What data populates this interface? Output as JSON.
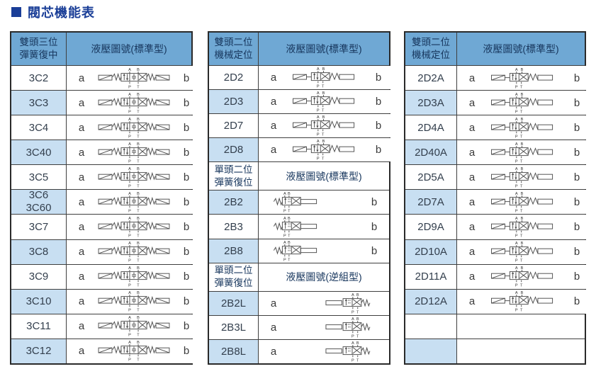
{
  "title": {
    "text": "閥芯機能表"
  },
  "colors": {
    "title_blue": "#1a3e97",
    "header_bg": "#6fa8d4",
    "alt_row_bg": "#c8dff2",
    "header_text": "#17365d",
    "border": "#2a2a2a",
    "diagram_stroke": "#4d4d4d"
  },
  "valve_ports": {
    "top_left": "A",
    "top_right": "B",
    "bottom_left": "P",
    "bottom_right": "T"
  },
  "tables": [
    {
      "key": "double-head-three-position",
      "sections": [
        {
          "kind": "main",
          "col1": "雙頭三位\n彈簧復中",
          "col2": "液壓圖號(標準型)",
          "rows": [
            {
              "code": "3C2",
              "a": "a",
              "b": "b",
              "diagram": "v3",
              "alt": false
            },
            {
              "code": "3C3",
              "a": "a",
              "b": "b",
              "diagram": "v3",
              "alt": true
            },
            {
              "code": "3C4",
              "a": "a",
              "b": "b",
              "diagram": "v3",
              "alt": false
            },
            {
              "code": "3C40",
              "a": "a",
              "b": "b",
              "diagram": "v3",
              "alt": true
            },
            {
              "code": "3C5",
              "a": "a",
              "b": "b",
              "diagram": "v3",
              "alt": false
            },
            {
              "code": "3C6\n3C60",
              "a": "a",
              "b": "b",
              "diagram": "v3",
              "alt": true
            },
            {
              "code": "3C7",
              "a": "a",
              "b": "b",
              "diagram": "v3",
              "alt": false
            },
            {
              "code": "3C8",
              "a": "a",
              "b": "b",
              "diagram": "v3",
              "alt": true
            },
            {
              "code": "3C9",
              "a": "a",
              "b": "b",
              "diagram": "v3",
              "alt": false
            },
            {
              "code": "3C10",
              "a": "a",
              "b": "b",
              "diagram": "v3",
              "alt": true
            },
            {
              "code": "3C11",
              "a": "a",
              "b": "b",
              "diagram": "v3",
              "alt": false
            },
            {
              "code": "3C12",
              "a": "a",
              "b": "b",
              "diagram": "v3",
              "alt": true
            }
          ]
        }
      ]
    },
    {
      "key": "double-single-head-two-position",
      "sections": [
        {
          "kind": "main",
          "col1": "雙頭二位\n機械定位",
          "col2": "液壓圖號(標準型)",
          "rows": [
            {
              "code": "2D2",
              "a": "a",
              "b": "b",
              "diagram": "v2d",
              "alt": false
            },
            {
              "code": "2D3",
              "a": "a",
              "b": "b",
              "diagram": "v2d",
              "alt": true
            },
            {
              "code": "2D7",
              "a": "a",
              "b": "b",
              "diagram": "v2d",
              "alt": false
            },
            {
              "code": "2D8",
              "a": "a",
              "b": "b",
              "diagram": "v2d",
              "alt": true
            }
          ]
        },
        {
          "kind": "sub",
          "col1": "單頭二位\n彈簧復位",
          "col2": "液壓圖號(標準型)",
          "rows": [
            {
              "code": "2B2",
              "a": "",
              "b": "b",
              "diagram": "v2b",
              "alt": true
            },
            {
              "code": "2B3",
              "a": "",
              "b": "b",
              "diagram": "v2b",
              "alt": false
            },
            {
              "code": "2B8",
              "a": "",
              "b": "b",
              "diagram": "v2b",
              "alt": true
            }
          ]
        },
        {
          "kind": "sub",
          "col1": "單頭二位\n彈簧復位",
          "col2": "液壓圖號(逆組型)",
          "rows": [
            {
              "code": "2B2L",
              "a": "a",
              "b": "",
              "diagram": "v2bl",
              "alt": true
            },
            {
              "code": "2B3L",
              "a": "a",
              "b": "",
              "diagram": "v2bl",
              "alt": false
            },
            {
              "code": "2B8L",
              "a": "a",
              "b": "",
              "diagram": "v2bl",
              "alt": true
            }
          ]
        }
      ]
    },
    {
      "key": "double-head-two-position-A",
      "sections": [
        {
          "kind": "main",
          "col1": "雙頭二位\n機械定位",
          "col2": "液壓圖號(標準型)",
          "rows": [
            {
              "code": "2D2A",
              "a": "a",
              "b": "b",
              "diagram": "v2d",
              "alt": false
            },
            {
              "code": "2D3A",
              "a": "a",
              "b": "b",
              "diagram": "v2d",
              "alt": true
            },
            {
              "code": "2D4A",
              "a": "a",
              "b": "b",
              "diagram": "v2d",
              "alt": false
            },
            {
              "code": "2D40A",
              "a": "a",
              "b": "b",
              "diagram": "v2d",
              "alt": true
            },
            {
              "code": "2D5A",
              "a": "a",
              "b": "b",
              "diagram": "v2d",
              "alt": false
            },
            {
              "code": "2D7A",
              "a": "a",
              "b": "b",
              "diagram": "v2d",
              "alt": true
            },
            {
              "code": "2D9A",
              "a": "a",
              "b": "b",
              "diagram": "v2d",
              "alt": false
            },
            {
              "code": "2D10A",
              "a": "a",
              "b": "b",
              "diagram": "v2d",
              "alt": true
            },
            {
              "code": "2D11A",
              "a": "a",
              "b": "b",
              "diagram": "v2d",
              "alt": false
            },
            {
              "code": "2D12A",
              "a": "a",
              "b": "b",
              "diagram": "v2d",
              "alt": true
            },
            {
              "code": "",
              "a": "",
              "b": "",
              "diagram": "none",
              "alt": false
            },
            {
              "code": "",
              "a": "",
              "b": "",
              "diagram": "none",
              "alt": true
            }
          ]
        }
      ]
    }
  ]
}
